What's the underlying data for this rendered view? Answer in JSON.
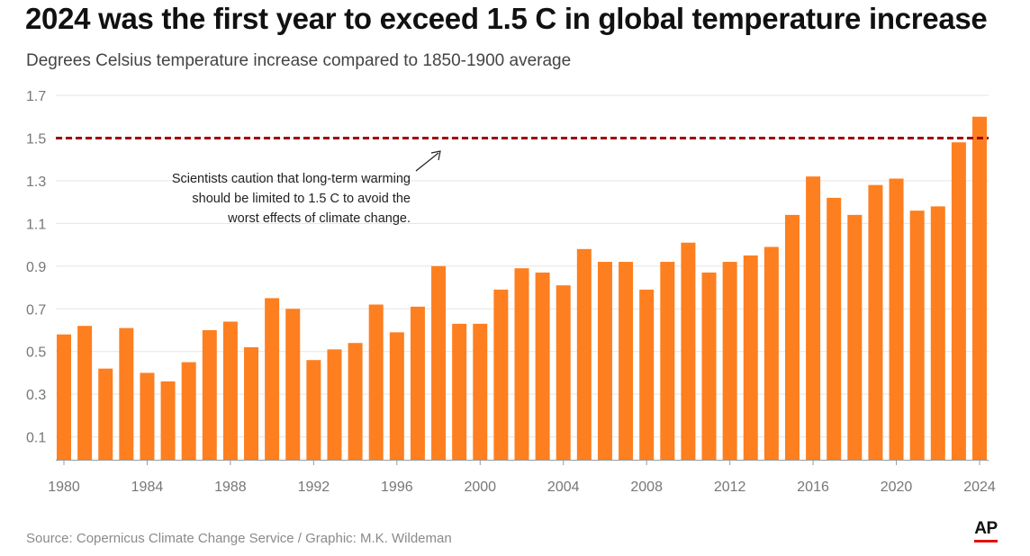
{
  "title": "2024 was the first year to exceed 1.5 C in global temperature increase",
  "subtitle": "Degrees Celsius temperature increase compared to 1850-1900 average",
  "source": "Source: Copernicus Climate Change Service / Graphic: M.K. Wildeman",
  "logo": "AP",
  "colors": {
    "bar": "#fd7f20",
    "threshold": "#a00000",
    "grid": "#e5e5e5",
    "axis": "#999999",
    "logo_accent": "#e3120b"
  },
  "chart_data": {
    "type": "bar",
    "x": [
      1980,
      1981,
      1982,
      1983,
      1984,
      1985,
      1986,
      1987,
      1988,
      1989,
      1990,
      1991,
      1992,
      1993,
      1994,
      1995,
      1996,
      1997,
      1998,
      1999,
      2000,
      2001,
      2002,
      2003,
      2004,
      2005,
      2006,
      2007,
      2008,
      2009,
      2010,
      2011,
      2012,
      2013,
      2014,
      2015,
      2016,
      2017,
      2018,
      2019,
      2020,
      2021,
      2022,
      2023,
      2024
    ],
    "values": [
      0.58,
      0.62,
      0.42,
      0.61,
      0.4,
      0.36,
      0.45,
      0.6,
      0.64,
      0.52,
      0.75,
      0.7,
      0.46,
      0.51,
      0.54,
      0.72,
      0.59,
      0.71,
      0.9,
      0.63,
      0.63,
      0.79,
      0.89,
      0.87,
      0.81,
      0.98,
      0.92,
      0.92,
      0.79,
      0.92,
      1.01,
      0.87,
      0.92,
      0.95,
      0.99,
      1.14,
      1.32,
      1.22,
      1.14,
      1.28,
      1.31,
      1.16,
      1.18,
      1.48,
      1.6
    ],
    "x_tick_labels": [
      "1980",
      "1984",
      "1988",
      "1992",
      "1996",
      "2000",
      "2004",
      "2008",
      "2012",
      "2016",
      "2020",
      "2024"
    ],
    "y_ticks": [
      "0.1",
      "0.3",
      "0.5",
      "0.7",
      "0.9",
      "1.1",
      "1.3",
      "1.5",
      "1.7"
    ],
    "ylim": [
      -0.007,
      1.7
    ],
    "grid": true,
    "reference_line": {
      "value": 1.5,
      "style": "dashed"
    },
    "annotation": [
      "Scientists caution that long-term warming",
      "should be limited to 1.5 C to avoid the",
      "worst effects of climate change."
    ]
  }
}
